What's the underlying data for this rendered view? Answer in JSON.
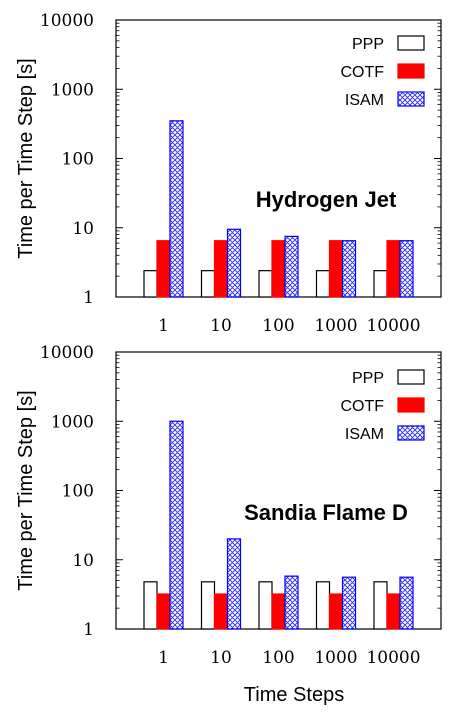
{
  "chart_data": [
    {
      "type": "bar",
      "title": "",
      "annotation": "Hydrogen Jet",
      "ylabel": "Time per Time Step [s]",
      "xlabel": "",
      "yscale": "log",
      "ylim": [
        1,
        10000
      ],
      "yticks": [
        "1",
        "10",
        "100",
        "1000",
        "10000"
      ],
      "categories": [
        "1",
        "10",
        "100",
        "1000",
        "10000"
      ],
      "legend_position": "top-right",
      "grid": false,
      "series": [
        {
          "name": "PPP",
          "color": "#ffffff",
          "values": [
            2.4,
            2.4,
            2.4,
            2.4,
            2.4
          ]
        },
        {
          "name": "COTF",
          "color": "#ff0000",
          "values": [
            6.5,
            6.5,
            6.5,
            6.5,
            6.5
          ]
        },
        {
          "name": "ISAM",
          "color": "#0000ff",
          "values": [
            350,
            9.5,
            7.5,
            6.5,
            6.5
          ]
        }
      ]
    },
    {
      "type": "bar",
      "title": "",
      "annotation": "Sandia Flame D",
      "ylabel": "Time per Time Step [s]",
      "xlabel": "Time Steps",
      "yscale": "log",
      "ylim": [
        1,
        10000
      ],
      "yticks": [
        "1",
        "10",
        "100",
        "1000",
        "10000"
      ],
      "categories": [
        "1",
        "10",
        "100",
        "1000",
        "10000"
      ],
      "legend_position": "top-right",
      "grid": false,
      "series": [
        {
          "name": "PPP",
          "color": "#ffffff",
          "values": [
            4.8,
            4.8,
            4.8,
            4.8,
            4.8
          ]
        },
        {
          "name": "COTF",
          "color": "#ff0000",
          "values": [
            3.2,
            3.2,
            3.2,
            3.2,
            3.2
          ]
        },
        {
          "name": "ISAM",
          "color": "#0000ff",
          "values": [
            1000,
            20,
            5.8,
            5.6,
            5.6
          ]
        }
      ]
    }
  ]
}
